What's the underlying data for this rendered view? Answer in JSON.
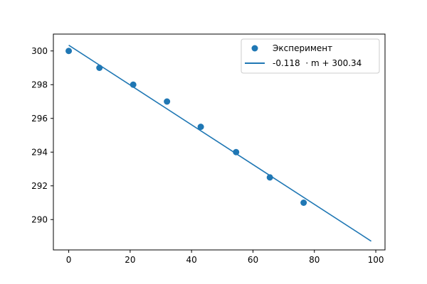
{
  "chart_data": {
    "type": "scatter",
    "title": "",
    "xlabel": "",
    "ylabel": "",
    "xlim": [
      -5,
      103
    ],
    "ylim": [
      288.2,
      301.0
    ],
    "xticks": [
      0,
      20,
      40,
      60,
      80,
      100
    ],
    "yticks": [
      290,
      292,
      294,
      296,
      298,
      300
    ],
    "grid": false,
    "legend_position": "top-right",
    "series": [
      {
        "name": "Эксперимент",
        "kind": "scatter",
        "color": "#1f77b4",
        "x": [
          0,
          10,
          21,
          32,
          43,
          54.5,
          65.5,
          76.5
        ],
        "y": [
          300,
          299,
          298,
          297,
          295.5,
          294,
          292.5,
          291
        ]
      },
      {
        "name": "-0.118  · m + 300.34",
        "kind": "line",
        "color": "#1f77b4",
        "x": [
          0,
          98.5
        ],
        "y": [
          300.34,
          288.72
        ]
      }
    ]
  }
}
